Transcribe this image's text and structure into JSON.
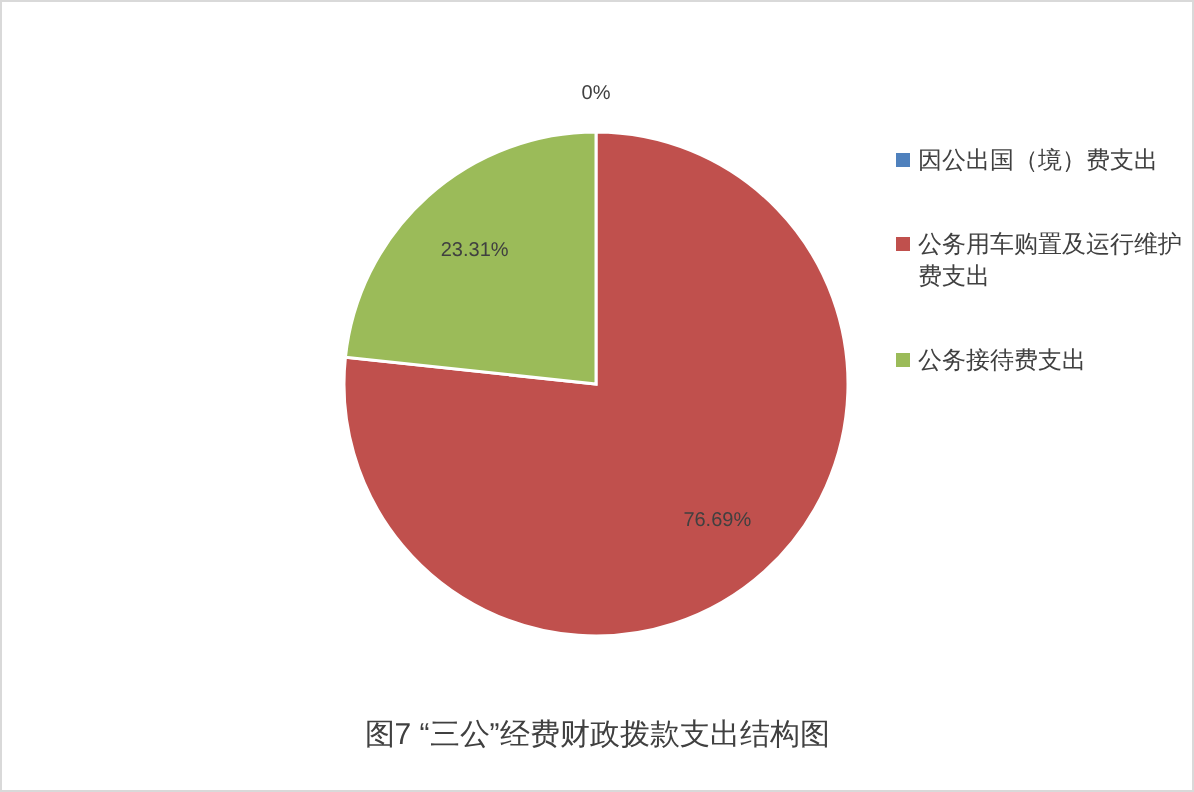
{
  "chart_data": {
    "type": "pie",
    "title": "图7 “三公”经费财政拨款支出结构图",
    "categories": [
      "因公出国（境）费支出",
      "公务用车购置及运行维护费支出",
      "公务接待费支出"
    ],
    "values": [
      0,
      76.69,
      23.31
    ],
    "colors": [
      "#4f81bd",
      "#c0504d",
      "#9bbb59"
    ],
    "value_labels": [
      "0%",
      "76.69%",
      "23.31%"
    ],
    "legend": "right"
  }
}
